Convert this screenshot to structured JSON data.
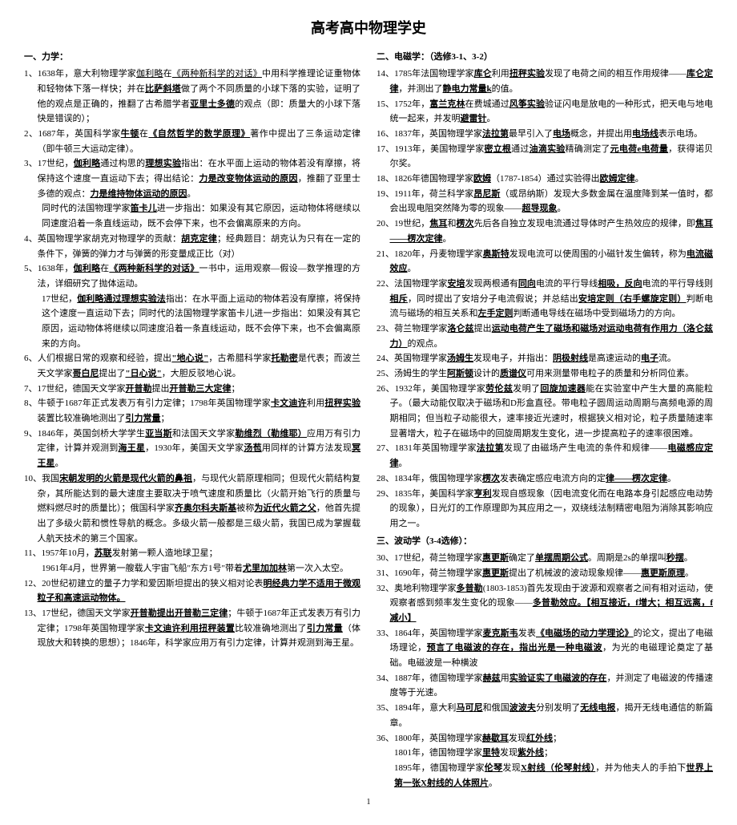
{
  "title": "高考高中物理学史",
  "left": {
    "head1": "一、力学：",
    "items": [
      "1、1638年，意大利物理学家<u>伽利略</u>在<u>《两种新科学的对话》</u>中用科学推理论证重物体和轻物体下落一样快；并在<u class='b'>比萨斜塔</u>做了两个不同质量的小球下落的实验，证明了他的观点是正确的，推翻了古希腊学者<u class='b'>亚里士多德</u>的观点（即：质量大的小球下落快是错误的）；",
      "2、1687年，英国科学家<u class='b'>牛顿</u>在<u class='b'>《自然哲学的数学原理》</u>著作中提出了三条运动定律（即牛顿三大运动定律）。",
      "3、17世纪，<u class='b'>伽利略</u>通过构思的<u class='b'>理想实验</u>指出：在水平面上运动的物体若没有摩擦，将保持这个速度一直运动下去；得出结论：<u class='b'>力是改变物体运动的原因</u>，推翻了亚里士多德的观点：<u class='b'>力是维持物体运动的原因</u>。",
      "",
      "4、英国物理学家胡克对物理学的贡献：<u class='b'>胡克定律</u>；经典题目：胡克认为只有在一定的条件下，弹簧的弹力才与弹簧的形变量成正比（对）",
      "5、1638年，<u class='b'>伽利略</u>在<u class='b'>《两种新科学的对话》</u>一书中，运用观察—假设—数学推理的方法，详细研究了抛体运动。",
      "",
      "6、人们根据日常的观察和经验，提出<u class='b'>\"地心说\"</u>，古希腊科学家<u class='b'>托勒密</u>是代表；而波兰天文学家<u class='b'>哥白尼</u>提出了<u class='b'>\"日心说\"</u>，大胆反驳地心说。",
      "7、17世纪，德国天文学家<u class='b'>开普勒</u>提出<u class='b'>开普勒三大定律</u>；",
      "8、牛顿于1687年正式发表万有引力定律；1798年英国物理学家<u class='b'>卡文迪许</u>利用<u class='b'>扭秤实验</u>装置比较准确地测出了<u class='b'>引力常量</u>；",
      "9、1846年，英国剑桥大学学生<u class='b'>亚当斯</u>和法国天文学家<u class='b'>勒维烈（勒维耶）</u>应用万有引力定律，计算并观测到<u class='b'>海王星</u>，1930年，美国天文学家<u class='b'>汤苞</u>用同样的计算方法发现<u class='b'>冥王星</u>。",
      "10、我国<u class='b'>宋朝发明的火箭是现代火箭的鼻祖</u>，与现代火箭原理相同；但现代火箭结构复杂，其所能达到的最大速度主要取决于喷气速度和质量比（火箭开始飞行的质量与燃料燃尽时的质量比）；俄国科学家<u class='b'>齐奥尔科夫斯基</u>被称<u class='b'>为近代火箭之父</u>，他首先提出了多级火箭和惯性导航的概念。多级火箭一般都是三级火箭，我国已成为掌握载人航天技术的第三个国家。",
      "11、1957年10月，<u class='b'>苏联</u>发射第一颗人造地球卫星；",
      "",
      "12、20世纪初建立的量子力学和爱因斯坦提出的狭义相对论表<u class='b'>明经典力学不适用于微观粒子和高速运动物体。</u>",
      "13、17世纪，德国天文学家<u class='b'>开普勒提出开普勒三定律</u>；牛顿于1687年正式发表万有引力定律；1798年英国物理学家<u class='b'>卡文迪许利用扭秤装置</u>比较准确地测出了<u class='b'>引力常量</u>（体现放大和转换的思想）；1846年，科学家应用万有引力定律，计算并观测到海王星。"
    ],
    "sub3": "同时代的法国物理学家<u class='b'>笛卡儿</u>进一步指出：如果没有其它原因，运动物体将继续以同速度沿着一条直线运动，既不会停下来，也不会偏离原来的方向。",
    "sub5": "17世纪，<u class='b'>伽利略通过理想实验法</u>指出：在水平面上运动的物体若没有摩擦，将保持这个速度一直运动下去；同时代的法国物理学家笛卡儿进一步指出：如果没有其它原因，运动物体将继续以同速度沿着一条直线运动，既不会停下来，也不会偏离原来的方向。",
    "sub11": "1961年4月，世界第一艘载人宇宙飞船\"东方1号\"带着<u class='b'>尤里加加林</u>第一次入太空。"
  },
  "right": {
    "head2": "二、电磁学：（选修3-1、3-2）",
    "items2": [
      "14、1785年法国物理学家<u class='b'>库仑</u>利用<u class='b'>扭秤实验</u>发现了电荷之间的相互作用规律——<u class='b'>库仑定律</u>，并测出了<u class='b'>静电力常量k</u>的值。",
      "15、1752年，<u class='b'>富兰克林</u>在费城通过<u class='b'>风筝实验</u>验证闪电是放电的一种形式，把天电与地电统一起来，并发明<u class='b'>避雷针</u>。",
      "16、1837年，英国物理学家<u class='b'>法拉第</u>最早引入了<u class='b'>电场</u>概念，并提出用<u class='b'>电场线</u>表示电场。",
      "17、1913年，美国物理学家<u class='b'>密立根</u>通过<u class='b'>油滴实验</u>精确测定了<u class='b'>元电荷e电荷量</u>，获得诺贝尔奖。",
      "18、1826年德国物理学家<u class='b'>欧姆</u>（1787-1854）通过实验得出<u class='b'>欧姆定律</u>。",
      "19、1911年，荷兰科学家<u class='b'>昂尼斯</u>（或昂纳斯）发现大多数金属在温度降到某一值时，都会出现电阻突然降为零的现象——<u class='b'>超导现象</u>。",
      "20、19世纪，<u class='b'>焦耳</u>和<u class='b'>楞次</u>先后各自独立发现电流通过导体时产生热效应的规律，即<u class='b'>焦耳——楞次定律</u>。",
      "21、1820年，丹麦物理学家<u class='b'>奥斯特</u>发现电流可以使周围的小磁针发生偏转，称为<u class='b'>电流磁效应</u>。",
      "22、法国物理学家<u class='b'>安培</u>发现两根通有<u class='b'>同向</u>电流的平行导线<u class='b'>相吸，反向</u>电流的平行导线则<u class='b'>相斥</u>，同时提出了安培分子电流假说；并总结出<u class='b'>安培定则（右手螺旋定则）</u>判断电流与磁场的相互关系和<u class='b'>左手定则</u>判断通电导线在磁场中受到磁场力的方向。",
      "23、荷兰物理学家<u class='b'>洛仑兹</u>提出<u class='b'>运动电荷产生了磁场和磁场对运动电荷有作用力（洛仑兹力）</u>的观点。",
      "24、英国物理学家<u class='b'>汤姆生</u>发现电子，并指出：<u class='b'>阴极射线</u>是高速运动的<u class='b'>电子</u>流。",
      "25、汤姆生的学生<u class='b'>阿斯顿</u>设计的<u class='b'>质谱仪</u>可用来测量带电粒子的质量和分析同位素。",
      "26、1932年，美国物理学家<u class='b'>劳伦兹</u>发明了<u class='b'>回旋加速器</u>能在实验室中产生大量的高能粒子。（最大动能仅取决于磁场和D形盒直径。带电粒子圆周运动周期与高频电源的周期相同；但当粒子动能很大，速率接近光速时，根据狭义相对论，粒子质量随速率显著增大，粒子在磁场中的回旋周期发生变化，进一步提高粒子的速率很困难。",
      "27、1831年英国物理学家<u class='b'>法拉第</u>发现了由磁场产生电流的条件和规律——<u class='b'>电磁感应定律</u>。",
      "28、1834年，俄国物理学家<u class='b'>楞次</u>发表确定感应电流方向的定<u class='b'>律——楞次定律</u>。",
      "29、1835年，美国科学家<u class='b'>亨利</u>发现自感现象（因电流变化而在电路本身引起感应电动势的现象），日光灯的工作原理即为其应用之一，双绕线法制精密电阻为消除其影响应用之一。"
    ],
    "head3": "三、波动学（3-4选修）：",
    "items3": [
      "30、17世纪，荷兰物理学家<u class='b'>惠更斯</u>确定了<u class='b'>单摆周期公式</u>。周期是2s的单摆叫<u class='b'>秒摆</u>。",
      "31、1690年，荷兰物理学家<u class='b'>惠更斯</u>提出了机械波的波动现象规律——<u class='b'>惠更斯原理</u>。",
      "32、奥地利物理学家<u class='b'>多普勒</u>(1803-1853)首先发现由于波源和观察者之间有相对运动，使观察者感到频率发生变化的现象——<u class='b'>多普勒效应。【相互接近，f增大；相互远离，f减小】</u>",
      "33、1864年，英国物理学家<u class='b'>麦克斯韦</u>发表<u class='b'>《电磁场的动力学理论》</u>的论文，提出了电磁场理论，<u class='b'>预言了电磁波的存在，指出光是一种电磁波</u>，为光的电磁理论奠定了基础。电磁波是一种横波",
      "34、1887年，德国物理学家<u class='b'>赫兹</u>用<u class='b'>实验证实了电磁波的存在</u>，并测定了电磁波的传播速度等于光速。",
      "35、1894年，意大利<u class='b'>马可尼</u>和俄国<u class='b'>波波夫</u>分别发明了<u class='b'>无线电报</u>，揭开无线电通信的新篇章。",
      "36、1800年，英国物理学家<u class='b'>赫歇耳</u>发现<u class='b'>红外线</u>；",
      "",
      ""
    ],
    "sub36a": "1801年，德国物理学家<u class='b'>里特</u>发现<u class='b'>紫外线</u>；",
    "sub36b": "1895年，德国物理学家<u class='b'>伦琴</u>发现<u class='b'>X射线（伦琴射线）</u>，并为他夫人的手拍下<u class='b'>世界上第一张X射线的人体照片</u>。"
  },
  "pagenum": "1"
}
